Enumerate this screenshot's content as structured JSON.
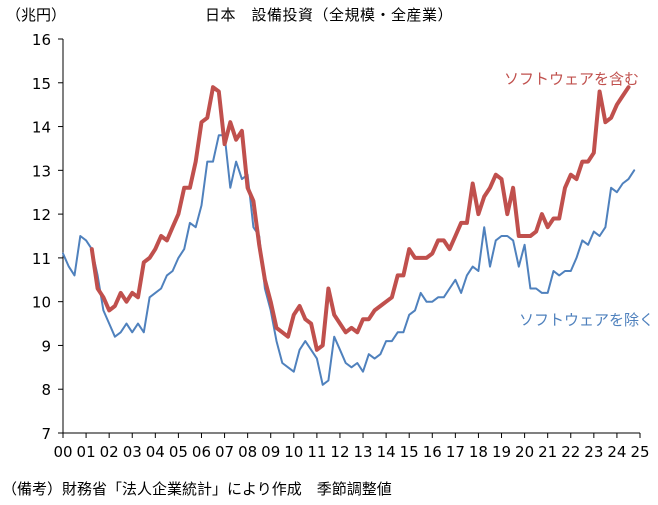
{
  "chart_data": {
    "type": "line",
    "title": "日本　設備投資（全規模・全産業）",
    "unit_label": "（兆円）",
    "note": "（備考）財務省「法人企業統計」により作成　季節調整値",
    "xlabel": "",
    "ylabel": "",
    "ylim": [
      7,
      16
    ],
    "yticks": [
      7,
      8,
      9,
      10,
      11,
      12,
      13,
      14,
      15,
      16
    ],
    "xlim": [
      2000,
      2025
    ],
    "x_tick_labels": [
      "00",
      "01",
      "02",
      "03",
      "04",
      "05",
      "06",
      "07",
      "08",
      "09",
      "10",
      "11",
      "12",
      "13",
      "14",
      "15",
      "16",
      "17",
      "18",
      "19",
      "20",
      "21",
      "22",
      "23",
      "24",
      "25"
    ],
    "grid": false,
    "series": [
      {
        "name": "ソフトウェアを含む",
        "color": "#c0504d",
        "start_x": 2001.25,
        "step": 0.25,
        "values": [
          11.2,
          10.3,
          10.1,
          9.8,
          9.9,
          10.2,
          10.0,
          10.2,
          10.1,
          10.9,
          11.0,
          11.2,
          11.5,
          11.4,
          11.7,
          12.0,
          12.6,
          12.6,
          13.2,
          14.1,
          14.2,
          14.9,
          14.8,
          13.6,
          14.1,
          13.7,
          13.9,
          12.6,
          12.3,
          11.3,
          10.5,
          10.0,
          9.4,
          9.3,
          9.2,
          9.7,
          9.9,
          9.6,
          9.5,
          8.9,
          9.0,
          10.3,
          9.7,
          9.5,
          9.3,
          9.4,
          9.3,
          9.6,
          9.6,
          9.8,
          9.9,
          10.0,
          10.1,
          10.6,
          10.6,
          11.2,
          11.0,
          11.0,
          11.0,
          11.1,
          11.4,
          11.4,
          11.2,
          11.5,
          11.8,
          11.8,
          12.7,
          12.0,
          12.4,
          12.6,
          12.9,
          12.8,
          12.0,
          12.6,
          11.5,
          11.5,
          11.5,
          11.6,
          12.0,
          11.7,
          11.9,
          11.9,
          12.6,
          12.9,
          12.8,
          13.2,
          13.2,
          13.4,
          14.8,
          14.1,
          14.2,
          14.5,
          14.7,
          14.9
        ]
      },
      {
        "name": "ソフトウェアを除く",
        "color": "#4f81bd",
        "start_x": 2000.0,
        "step": 0.25,
        "values": [
          11.1,
          10.8,
          10.6,
          11.5,
          11.4,
          11.2,
          10.6,
          9.8,
          9.5,
          9.2,
          9.3,
          9.5,
          9.3,
          9.5,
          9.3,
          10.1,
          10.2,
          10.3,
          10.6,
          10.7,
          11.0,
          11.2,
          11.8,
          11.7,
          12.2,
          13.2,
          13.2,
          13.8,
          13.8,
          12.6,
          13.2,
          12.8,
          12.9,
          11.7,
          11.5,
          10.3,
          9.8,
          9.1,
          8.6,
          8.5,
          8.4,
          8.9,
          9.1,
          8.9,
          8.7,
          8.1,
          8.2,
          9.2,
          8.9,
          8.6,
          8.5,
          8.6,
          8.4,
          8.8,
          8.7,
          8.8,
          9.1,
          9.1,
          9.3,
          9.3,
          9.7,
          9.8,
          10.2,
          10.0,
          10.0,
          10.1,
          10.1,
          10.3,
          10.5,
          10.2,
          10.6,
          10.8,
          10.7,
          11.7,
          10.8,
          11.4,
          11.5,
          11.5,
          11.4,
          10.8,
          11.3,
          10.3,
          10.3,
          10.2,
          10.2,
          10.7,
          10.6,
          10.7,
          10.7,
          11.0,
          11.4,
          11.3,
          11.6,
          11.5,
          11.7,
          12.6,
          12.5,
          12.7,
          12.8,
          13.0
        ]
      }
    ],
    "legend": [
      {
        "text": "ソフトウェアを含む",
        "series": 0,
        "placement": "top-right"
      },
      {
        "text": "ソフトウェアを除く",
        "series": 1,
        "placement": "right"
      }
    ]
  }
}
